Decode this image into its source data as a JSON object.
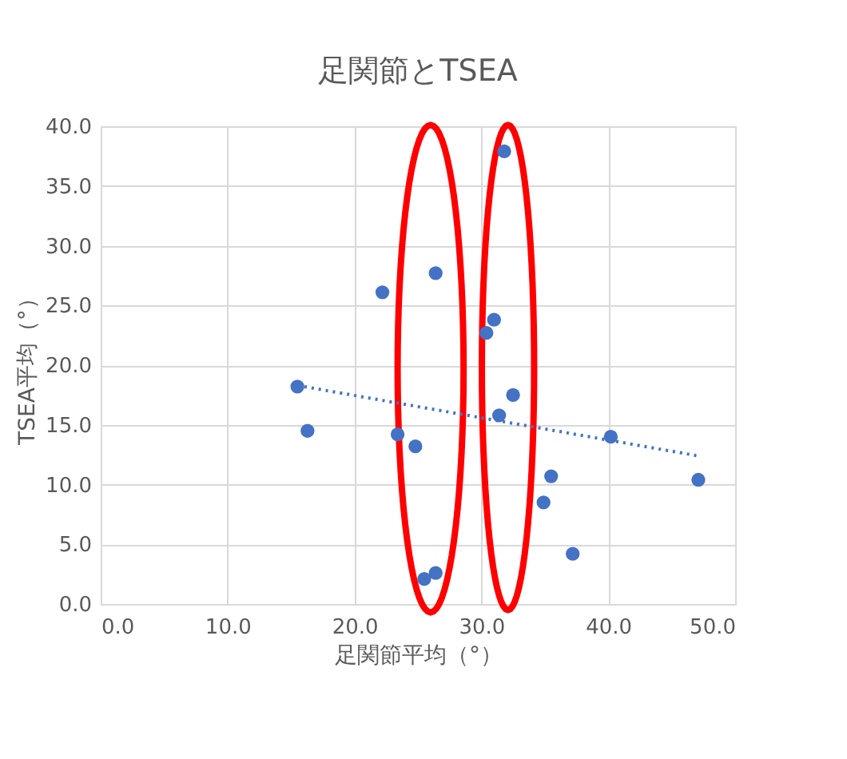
{
  "chart_data": {
    "type": "scatter",
    "title": "足関節とTSEA",
    "xlabel": "足関節平均（°）",
    "ylabel": "TSEA平均（°）",
    "xlim": [
      0,
      50
    ],
    "ylim": [
      0,
      40
    ],
    "xticks": [
      {
        "value": 0,
        "label": "0.0"
      },
      {
        "value": 10,
        "label": "10.0"
      },
      {
        "value": 20,
        "label": "20.0"
      },
      {
        "value": 30,
        "label": "30.0"
      },
      {
        "value": 40,
        "label": "40.0"
      },
      {
        "value": 50,
        "label": "50.0"
      }
    ],
    "yticks": [
      {
        "value": 0,
        "label": "0.0"
      },
      {
        "value": 5,
        "label": "5.0"
      },
      {
        "value": 10,
        "label": "10.0"
      },
      {
        "value": 15,
        "label": "15.0"
      },
      {
        "value": 20,
        "label": "20.0"
      },
      {
        "value": 25,
        "label": "25.0"
      },
      {
        "value": 30,
        "label": "30.0"
      },
      {
        "value": 35,
        "label": "35.0"
      },
      {
        "value": 40,
        "label": "40.0"
      }
    ],
    "grid": true,
    "legend": false,
    "marker": "circle",
    "series": [
      {
        "color": "#4472c4",
        "x": [
          15.5,
          16.3,
          22.2,
          26.4,
          23.4,
          24.8,
          25.5,
          26.4,
          31.8,
          31.0,
          30.4,
          32.5,
          31.4,
          40.2,
          35.5,
          34.9,
          37.2,
          47.1
        ],
        "values": [
          18.2,
          14.5,
          26.1,
          27.7,
          14.2,
          13.2,
          2.1,
          2.6,
          37.9,
          23.8,
          22.7,
          17.5,
          15.8,
          14.0,
          10.7,
          8.5,
          4.2,
          10.4
        ]
      },
      {
        "type": "line",
        "color": "#4472c4",
        "line_style": "dotted",
        "marker": "none",
        "x": [
          15.5,
          47.1
        ],
        "values": [
          18.3,
          12.4
        ]
      }
    ]
  }
}
